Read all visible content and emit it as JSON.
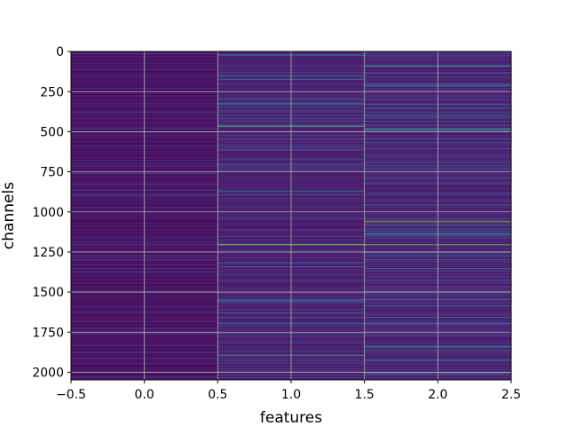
{
  "chart_data": {
    "type": "heatmap",
    "title": "",
    "xlabel": "features",
    "ylabel": "channels",
    "colormap": "viridis",
    "columns": [
      0,
      1,
      2
    ],
    "rows": 2048,
    "xlim": [
      -0.5,
      2.5
    ],
    "ylim": [
      2047.5,
      -0.5
    ],
    "y_inverted": true,
    "grid": true,
    "xticks": [
      -0.5,
      0.0,
      0.5,
      1.0,
      1.5,
      2.0,
      2.5
    ],
    "xtick_labels": [
      "−0.5",
      "0.0",
      "0.5",
      "1.0",
      "1.5",
      "2.0",
      "2.5"
    ],
    "yticks": [
      0,
      250,
      500,
      750,
      1000,
      1250,
      1500,
      1750,
      2000
    ],
    "ytick_labels": [
      "0",
      "250",
      "500",
      "750",
      "1000",
      "1250",
      "1500",
      "1750",
      "2000"
    ],
    "column_levels": {
      "0": {
        "typical": 0.06,
        "spread": 0.06
      },
      "1": {
        "typical": 0.12,
        "spread": 0.12
      },
      "2": {
        "typical": 0.14,
        "spread": 0.14
      }
    },
    "highlights": [
      {
        "column": 1,
        "row": 1205,
        "value": 0.85
      },
      {
        "column": 2,
        "row": 1205,
        "value": 0.78
      },
      {
        "column": 1,
        "row": 465,
        "value": 0.7
      },
      {
        "column": 1,
        "row": 1895,
        "value": 0.62
      },
      {
        "column": 2,
        "row": 1060,
        "value": 0.88
      },
      {
        "column": 2,
        "row": 480,
        "value": 0.6
      },
      {
        "column": 2,
        "row": 90,
        "value": 0.55
      },
      {
        "column": 2,
        "row": 1840,
        "value": 0.55
      },
      {
        "column": 2,
        "row": 2000,
        "value": 0.5
      },
      {
        "column": 1,
        "row": 870,
        "value": 0.5
      },
      {
        "column": 1,
        "row": 20,
        "value": 0.45
      },
      {
        "column": 1,
        "row": 150,
        "value": 0.45
      },
      {
        "column": 0,
        "row": 760,
        "value": 0.25
      }
    ]
  }
}
